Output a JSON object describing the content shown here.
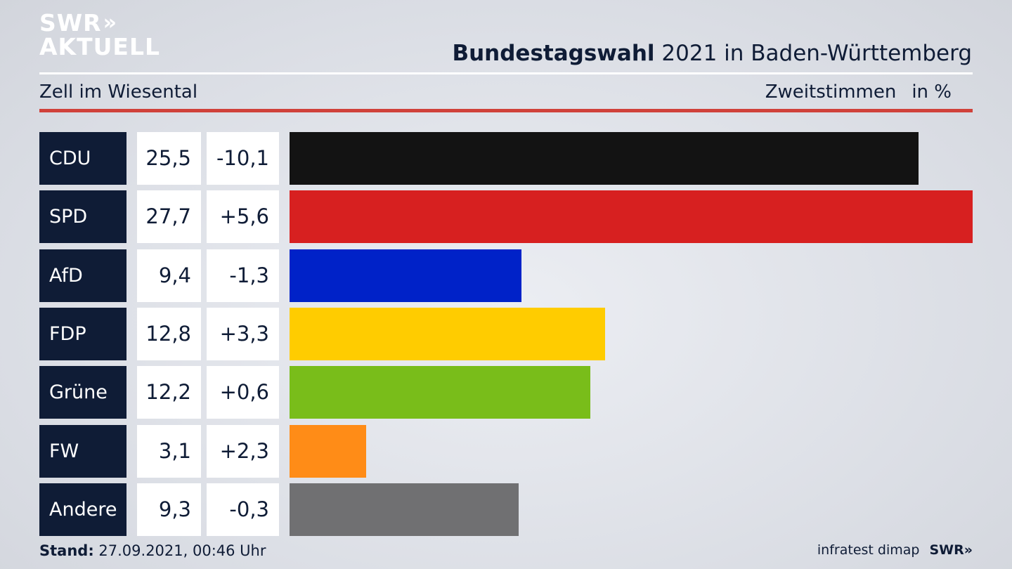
{
  "brand": {
    "line1": "SWR",
    "line2": "AKTUELL",
    "chevrons": "»"
  },
  "header": {
    "title_bold": "Bundestagswahl",
    "title_rest": " 2021 in Baden-Württemberg"
  },
  "subtitle": "Zell im Wiesental",
  "unit": {
    "label": "Zweitstimmen",
    "suffix": "in %"
  },
  "chart_data": {
    "type": "bar",
    "orientation": "horizontal",
    "categories": [
      "CDU",
      "SPD",
      "AfD",
      "FDP",
      "Grüne",
      "FW",
      "Andere"
    ],
    "values": [
      25.5,
      27.7,
      9.4,
      12.8,
      12.2,
      3.1,
      9.3
    ],
    "value_labels": [
      "25,5",
      "27,7",
      "9,4",
      "12,8",
      "12,2",
      "3,1",
      "9,3"
    ],
    "changes": [
      -10.1,
      5.6,
      -1.3,
      3.3,
      0.6,
      2.3,
      -0.3
    ],
    "change_labels": [
      "-10,1",
      "+5,6",
      "-1,3",
      "+3,3",
      "+0,6",
      "+2,3",
      "-0,3"
    ],
    "colors": [
      "#131313",
      "#d72020",
      "#0022c8",
      "#ffcc00",
      "#79bd1a",
      "#ff8c17",
      "#707072"
    ],
    "xlim": [
      0,
      27.7
    ],
    "grid": false
  },
  "footer": {
    "stand_label": "Stand:",
    "stand_value": " 27.09.2021, 00:46 Uhr",
    "source": "infratest dimap",
    "logo": "SWR»"
  }
}
